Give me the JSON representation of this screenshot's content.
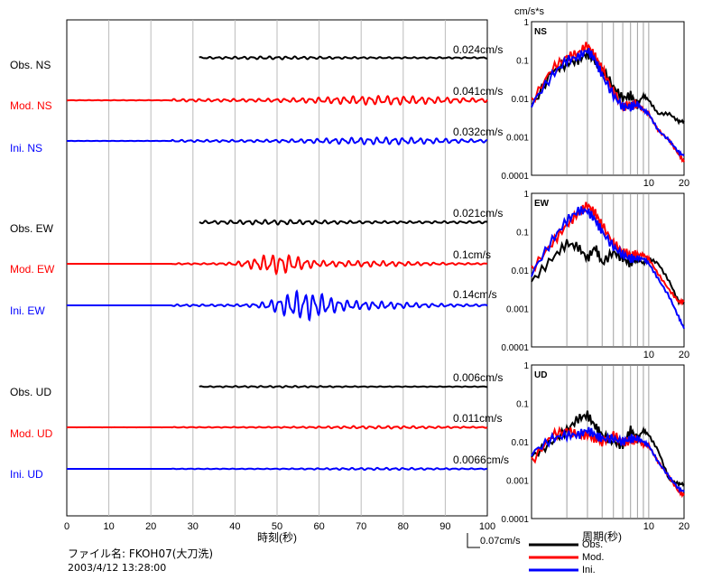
{
  "waveform_panel": {
    "x_ticks": [
      "0",
      "10",
      "20",
      "30",
      "40",
      "50",
      "60",
      "70",
      "80",
      "90",
      "100"
    ],
    "xlabel": "時刻(秒)",
    "traces": [
      {
        "label": "Obs. NS",
        "peak": "0.024cm/s",
        "color": "#000000"
      },
      {
        "label": "Mod. NS",
        "peak": "0.041cm/s",
        "color": "#ff0000"
      },
      {
        "label": "Ini. NS",
        "peak": "0.032cm/s",
        "color": "#0000ff"
      },
      {
        "label": "Obs. EW",
        "peak": "0.021cm/s",
        "color": "#000000"
      },
      {
        "label": "Mod. EW",
        "peak": "0.1cm/s",
        "color": "#ff0000"
      },
      {
        "label": "Ini. EW",
        "peak": "0.14cm/s",
        "color": "#0000ff"
      },
      {
        "label": "Obs. UD",
        "peak": "0.006cm/s",
        "color": "#000000"
      },
      {
        "label": "Mod. UD",
        "peak": "0.011cm/s",
        "color": "#ff0000"
      },
      {
        "label": "Ini. UD",
        "peak": "0.0066cm/s",
        "color": "#0000ff"
      }
    ]
  },
  "spectra_panel": {
    "unit": "cm/s*s",
    "y_ticks": [
      "1",
      "0.1",
      "0.01",
      "0.001",
      "0.0001"
    ],
    "x_ticks": [
      "10",
      "20"
    ],
    "xlabel": "周期(秒)",
    "panels": [
      {
        "name": "NS"
      },
      {
        "name": "EW"
      },
      {
        "name": "UD"
      }
    ]
  },
  "legend": {
    "scale_label": "0.07cm/s",
    "items": [
      {
        "label": "Obs.",
        "color": "#000000"
      },
      {
        "label": "Mod.",
        "color": "#ff0000"
      },
      {
        "label": "Ini.",
        "color": "#0000ff"
      }
    ]
  },
  "footer": {
    "file": "ファイル名:  FKOH07(大刀洗)",
    "datetime": "2003/4/12  13:28:00"
  },
  "chart_data": [
    {
      "type": "line",
      "xlabel": "時刻(秒)",
      "xlim": [
        0,
        100
      ],
      "series": [
        {
          "name": "Obs. NS",
          "peak_cm_s": 0.024
        },
        {
          "name": "Mod. NS",
          "peak_cm_s": 0.041
        },
        {
          "name": "Ini. NS",
          "peak_cm_s": 0.032
        },
        {
          "name": "Obs. EW",
          "peak_cm_s": 0.021
        },
        {
          "name": "Mod. EW",
          "peak_cm_s": 0.1
        },
        {
          "name": "Ini. EW",
          "peak_cm_s": 0.14
        },
        {
          "name": "Obs. UD",
          "peak_cm_s": 0.006
        },
        {
          "name": "Mod. UD",
          "peak_cm_s": 0.011
        },
        {
          "name": "Ini. UD",
          "peak_cm_s": 0.0066
        }
      ]
    },
    {
      "type": "line",
      "panel": "NS",
      "ylabel": "cm/s*s",
      "xlabel": "周期(秒)",
      "log_x": true,
      "log_y": true,
      "xlim": [
        1,
        20
      ],
      "ylim": [
        0.0001,
        1
      ],
      "x": [
        1,
        1.5,
        2,
        2.5,
        3,
        3.5,
        4,
        5,
        6,
        7,
        8,
        9,
        10,
        12,
        15,
        18,
        20
      ],
      "series": [
        {
          "name": "Obs.",
          "values": [
            0.006,
            0.05,
            0.08,
            0.1,
            0.15,
            0.09,
            0.06,
            0.02,
            0.01,
            0.012,
            0.007,
            0.012,
            0.009,
            0.004,
            0.004,
            0.0025,
            0.0026
          ]
        },
        {
          "name": "Mod.",
          "values": [
            0.008,
            0.06,
            0.12,
            0.15,
            0.25,
            0.12,
            0.06,
            0.015,
            0.006,
            0.007,
            0.007,
            0.005,
            0.004,
            0.0015,
            0.0008,
            0.00035,
            0.00022
          ]
        },
        {
          "name": "Ini.",
          "values": [
            0.007,
            0.04,
            0.1,
            0.12,
            0.18,
            0.1,
            0.04,
            0.012,
            0.006,
            0.006,
            0.007,
            0.005,
            0.004,
            0.0015,
            0.0008,
            0.0004,
            0.00032
          ]
        }
      ]
    },
    {
      "type": "line",
      "panel": "EW",
      "ylabel": "cm/s*s",
      "xlabel": "周期(秒)",
      "log_x": true,
      "log_y": true,
      "xlim": [
        1,
        20
      ],
      "ylim": [
        0.0001,
        1
      ],
      "x": [
        1,
        1.5,
        2,
        2.5,
        3,
        3.5,
        4,
        5,
        6,
        7,
        8,
        9,
        10,
        12,
        15,
        18,
        20
      ],
      "series": [
        {
          "name": "Obs.",
          "values": [
            0.005,
            0.02,
            0.05,
            0.04,
            0.02,
            0.04,
            0.015,
            0.03,
            0.02,
            0.015,
            0.02,
            0.015,
            0.02,
            0.015,
            0.005,
            0.0015,
            0.0015
          ]
        },
        {
          "name": "Mod.",
          "values": [
            0.01,
            0.05,
            0.15,
            0.3,
            0.5,
            0.3,
            0.15,
            0.05,
            0.03,
            0.025,
            0.025,
            0.025,
            0.02,
            0.008,
            0.003,
            0.0015,
            0.0015
          ]
        },
        {
          "name": "Ini.",
          "values": [
            0.008,
            0.06,
            0.2,
            0.35,
            0.35,
            0.2,
            0.1,
            0.04,
            0.025,
            0.02,
            0.02,
            0.02,
            0.015,
            0.006,
            0.002,
            0.0006,
            0.0003
          ]
        }
      ]
    },
    {
      "type": "line",
      "panel": "UD",
      "ylabel": "cm/s*s",
      "xlabel": "周期(秒)",
      "log_x": true,
      "log_y": true,
      "xlim": [
        1,
        20
      ],
      "ylim": [
        0.0001,
        1
      ],
      "x": [
        1,
        1.5,
        2,
        2.5,
        3,
        3.5,
        4,
        5,
        6,
        7,
        8,
        9,
        10,
        12,
        15,
        18,
        20
      ],
      "series": [
        {
          "name": "Obs.",
          "values": [
            0.004,
            0.01,
            0.02,
            0.04,
            0.05,
            0.025,
            0.015,
            0.01,
            0.008,
            0.02,
            0.012,
            0.02,
            0.015,
            0.006,
            0.001,
            0.0008,
            0.0008
          ]
        },
        {
          "name": "Mod.",
          "values": [
            0.003,
            0.015,
            0.02,
            0.015,
            0.015,
            0.012,
            0.01,
            0.015,
            0.01,
            0.01,
            0.012,
            0.008,
            0.008,
            0.003,
            0.0012,
            0.0005,
            0.0004
          ]
        },
        {
          "name": "Ini.",
          "values": [
            0.005,
            0.012,
            0.015,
            0.015,
            0.02,
            0.015,
            0.012,
            0.012,
            0.01,
            0.012,
            0.012,
            0.01,
            0.008,
            0.003,
            0.0012,
            0.0006,
            0.0005
          ]
        }
      ]
    }
  ]
}
